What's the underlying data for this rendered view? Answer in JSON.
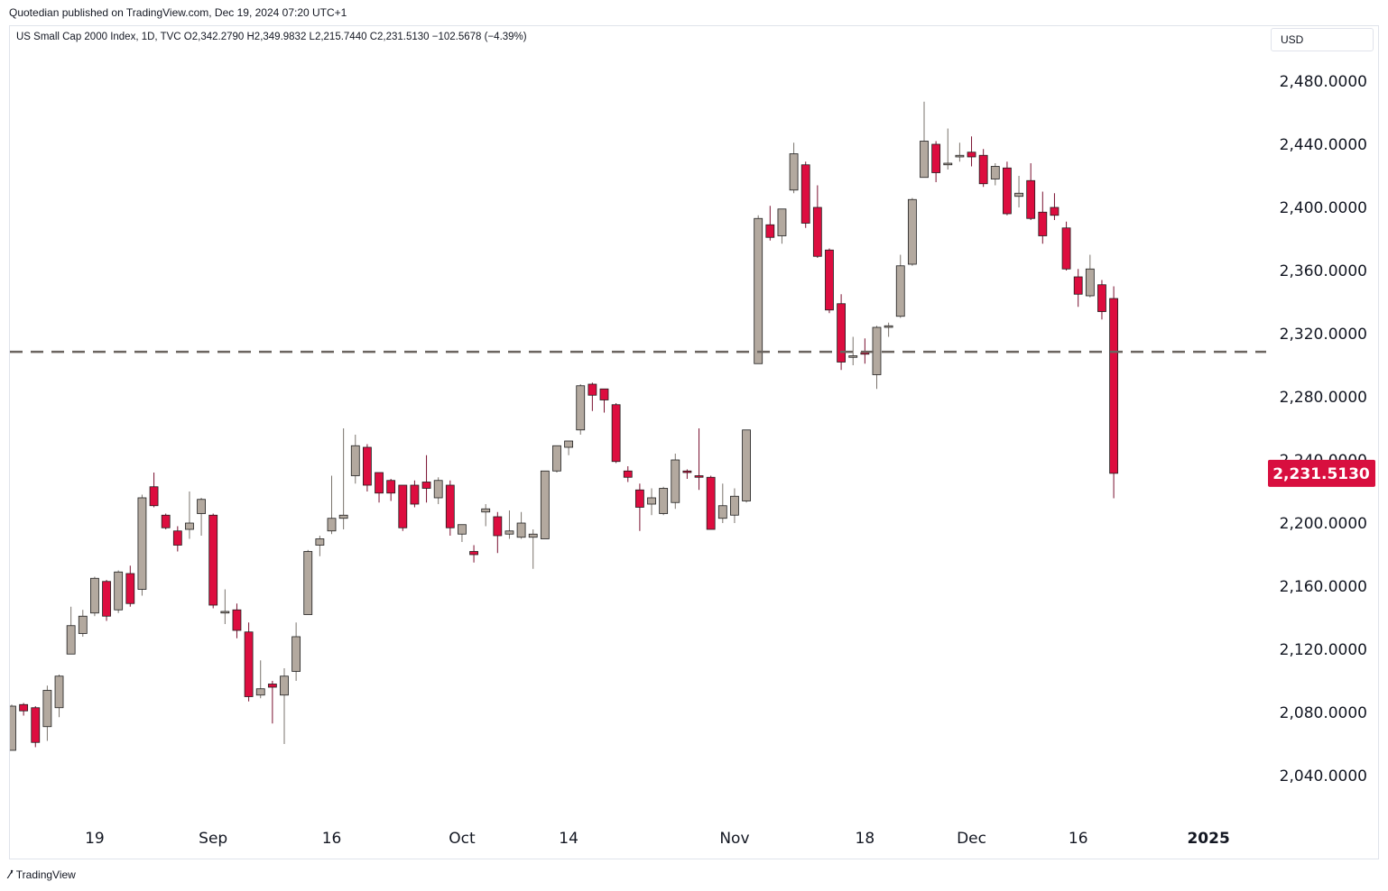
{
  "header": {
    "published": "Quotedian published on TradingView.com, Dec 19, 2024 07:20 UTC+1",
    "legend": "US Small Cap 2000 Index, 1D, TVC  O2,342.2790  H2,349.9832  L2,215.7440  C2,231.5130  −102.5678 (−4.39%)",
    "currency": "USD"
  },
  "footer": {
    "brand": "TradingView",
    "logo": "tradingview-logo-icon"
  },
  "colors": {
    "up": "#b3a99f",
    "down": "#dd0d3f",
    "wick_up": "#7a736c",
    "wick_down": "#7a1030",
    "dashed": "#6b6560",
    "price_tag": "#d80f3f"
  },
  "chart_data": {
    "type": "candlestick",
    "y_ticks": [
      "2,040.0000",
      "2,080.0000",
      "2,120.0000",
      "2,160.0000",
      "2,200.0000",
      "2,240.0000",
      "2,280.0000",
      "2,320.0000",
      "2,360.0000",
      "2,400.0000",
      "2,440.0000",
      "2,480.0000"
    ],
    "y_tick_values": [
      2040,
      2080,
      2120,
      2160,
      2200,
      2240,
      2280,
      2320,
      2360,
      2400,
      2440,
      2480
    ],
    "ylim": [
      2008,
      2522
    ],
    "x_labels": [
      {
        "label": "19",
        "index": 7
      },
      {
        "label": "Sep",
        "index": 17
      },
      {
        "label": "16",
        "index": 27
      },
      {
        "label": "Oct",
        "index": 38
      },
      {
        "label": "14",
        "index": 47
      },
      {
        "label": "Nov",
        "index": 61
      },
      {
        "label": "18",
        "index": 72
      },
      {
        "label": "Dec",
        "index": 81
      },
      {
        "label": "16",
        "index": 90
      },
      {
        "label": "2025",
        "index": 101
      }
    ],
    "last_price_label": "2,231.5130",
    "last_price": 2231.513,
    "horizontal_line": 2308.5,
    "candles": [
      {
        "o": 2056,
        "h": 2085,
        "l": 2056,
        "c": 2084
      },
      {
        "o": 2085,
        "h": 2086,
        "l": 2078,
        "c": 2081
      },
      {
        "o": 2083,
        "h": 2084,
        "l": 2058,
        "c": 2061
      },
      {
        "o": 2071,
        "h": 2097,
        "l": 2062,
        "c": 2094
      },
      {
        "o": 2083,
        "h": 2104,
        "l": 2077,
        "c": 2103
      },
      {
        "o": 2117,
        "h": 2147,
        "l": 2117,
        "c": 2135
      },
      {
        "o": 2130,
        "h": 2145,
        "l": 2128,
        "c": 2141
      },
      {
        "o": 2143,
        "h": 2166,
        "l": 2141,
        "c": 2165
      },
      {
        "o": 2163,
        "h": 2164,
        "l": 2138,
        "c": 2141
      },
      {
        "o": 2145,
        "h": 2170,
        "l": 2143,
        "c": 2169
      },
      {
        "o": 2168,
        "h": 2173,
        "l": 2147,
        "c": 2149
      },
      {
        "o": 2158,
        "h": 2218,
        "l": 2154,
        "c": 2216
      },
      {
        "o": 2223,
        "h": 2232,
        "l": 2210,
        "c": 2211
      },
      {
        "o": 2205,
        "h": 2206,
        "l": 2196,
        "c": 2197
      },
      {
        "o": 2195,
        "h": 2198,
        "l": 2182,
        "c": 2186
      },
      {
        "o": 2196,
        "h": 2220,
        "l": 2190,
        "c": 2200
      },
      {
        "o": 2206,
        "h": 2216,
        "l": 2192,
        "c": 2215
      },
      {
        "o": 2205,
        "h": 2206,
        "l": 2146,
        "c": 2148
      },
      {
        "o": 2143,
        "h": 2158,
        "l": 2136,
        "c": 2144
      },
      {
        "o": 2145,
        "h": 2149,
        "l": 2127,
        "c": 2132
      },
      {
        "o": 2131,
        "h": 2137,
        "l": 2087,
        "c": 2090
      },
      {
        "o": 2091,
        "h": 2113,
        "l": 2089,
        "c": 2095
      },
      {
        "o": 2098,
        "h": 2100,
        "l": 2073,
        "c": 2096
      },
      {
        "o": 2091,
        "h": 2108,
        "l": 2060,
        "c": 2103
      },
      {
        "o": 2106,
        "h": 2137,
        "l": 2100,
        "c": 2128
      },
      {
        "o": 2142,
        "h": 2183,
        "l": 2142,
        "c": 2182
      },
      {
        "o": 2186,
        "h": 2192,
        "l": 2179,
        "c": 2190
      },
      {
        "o": 2195,
        "h": 2230,
        "l": 2193,
        "c": 2203
      },
      {
        "o": 2203,
        "h": 2260,
        "l": 2196,
        "c": 2205
      },
      {
        "o": 2230,
        "h": 2256,
        "l": 2225,
        "c": 2249
      },
      {
        "o": 2248,
        "h": 2250,
        "l": 2220,
        "c": 2224
      },
      {
        "o": 2232,
        "h": 2232,
        "l": 2213,
        "c": 2219
      },
      {
        "o": 2227,
        "h": 2228,
        "l": 2214,
        "c": 2219
      },
      {
        "o": 2224,
        "h": 2224,
        "l": 2195,
        "c": 2197
      },
      {
        "o": 2224,
        "h": 2227,
        "l": 2210,
        "c": 2212
      },
      {
        "o": 2226,
        "h": 2243,
        "l": 2213,
        "c": 2222
      },
      {
        "o": 2216,
        "h": 2229,
        "l": 2212,
        "c": 2227
      },
      {
        "o": 2224,
        "h": 2227,
        "l": 2192,
        "c": 2197
      },
      {
        "o": 2193,
        "h": 2198,
        "l": 2188,
        "c": 2199
      },
      {
        "o": 2182,
        "h": 2186,
        "l": 2175,
        "c": 2180
      },
      {
        "o": 2207,
        "h": 2212,
        "l": 2198,
        "c": 2209
      },
      {
        "o": 2204,
        "h": 2207,
        "l": 2181,
        "c": 2192
      },
      {
        "o": 2193,
        "h": 2208,
        "l": 2190,
        "c": 2195
      },
      {
        "o": 2191,
        "h": 2207,
        "l": 2190,
        "c": 2200
      },
      {
        "o": 2191,
        "h": 2196,
        "l": 2171,
        "c": 2193
      },
      {
        "o": 2190,
        "h": 2233,
        "l": 2190,
        "c": 2233
      },
      {
        "o": 2233,
        "h": 2248,
        "l": 2232,
        "c": 2249
      },
      {
        "o": 2248,
        "h": 2250,
        "l": 2243,
        "c": 2252
      },
      {
        "o": 2259,
        "h": 2288,
        "l": 2256,
        "c": 2287
      },
      {
        "o": 2288,
        "h": 2289,
        "l": 2271,
        "c": 2281
      },
      {
        "o": 2285,
        "h": 2285,
        "l": 2270,
        "c": 2278
      },
      {
        "o": 2275,
        "h": 2276,
        "l": 2238,
        "c": 2239
      },
      {
        "o": 2233,
        "h": 2236,
        "l": 2226,
        "c": 2229
      },
      {
        "o": 2221,
        "h": 2225,
        "l": 2195,
        "c": 2210
      },
      {
        "o": 2212,
        "h": 2222,
        "l": 2205,
        "c": 2216
      },
      {
        "o": 2206,
        "h": 2223,
        "l": 2205,
        "c": 2222
      },
      {
        "o": 2213,
        "h": 2244,
        "l": 2209,
        "c": 2240
      },
      {
        "o": 2233,
        "h": 2234,
        "l": 2228,
        "c": 2232
      },
      {
        "o": 2230,
        "h": 2260,
        "l": 2221,
        "c": 2229
      },
      {
        "o": 2229,
        "h": 2230,
        "l": 2196,
        "c": 2196
      },
      {
        "o": 2203,
        "h": 2225,
        "l": 2200,
        "c": 2211
      },
      {
        "o": 2205,
        "h": 2222,
        "l": 2200,
        "c": 2217
      },
      {
        "o": 2214,
        "h": 2259,
        "l": 2213,
        "c": 2259
      },
      {
        "o": 2301,
        "h": 2395,
        "l": 2301,
        "c": 2393
      },
      {
        "o": 2389,
        "h": 2401,
        "l": 2379,
        "c": 2381
      },
      {
        "o": 2382,
        "h": 2397,
        "l": 2377,
        "c": 2399
      },
      {
        "o": 2411,
        "h": 2441,
        "l": 2409,
        "c": 2434
      },
      {
        "o": 2427,
        "h": 2429,
        "l": 2387,
        "c": 2390
      },
      {
        "o": 2400,
        "h": 2414,
        "l": 2368,
        "c": 2369
      },
      {
        "o": 2373,
        "h": 2374,
        "l": 2333,
        "c": 2335
      },
      {
        "o": 2339,
        "h": 2345,
        "l": 2297,
        "c": 2302
      },
      {
        "o": 2305,
        "h": 2318,
        "l": 2300,
        "c": 2306
      },
      {
        "o": 2308,
        "h": 2317,
        "l": 2301,
        "c": 2307
      },
      {
        "o": 2294,
        "h": 2325,
        "l": 2285,
        "c": 2324
      },
      {
        "o": 2324,
        "h": 2327,
        "l": 2318,
        "c": 2325
      },
      {
        "o": 2331,
        "h": 2370,
        "l": 2330,
        "c": 2363
      },
      {
        "o": 2364,
        "h": 2406,
        "l": 2363,
        "c": 2405
      },
      {
        "o": 2419,
        "h": 2467,
        "l": 2419,
        "c": 2442
      },
      {
        "o": 2440,
        "h": 2442,
        "l": 2416,
        "c": 2422
      },
      {
        "o": 2427,
        "h": 2450,
        "l": 2424,
        "c": 2428
      },
      {
        "o": 2432,
        "h": 2441,
        "l": 2429,
        "c": 2433
      },
      {
        "o": 2435,
        "h": 2445,
        "l": 2426,
        "c": 2432
      },
      {
        "o": 2433,
        "h": 2437,
        "l": 2413,
        "c": 2415
      },
      {
        "o": 2418,
        "h": 2428,
        "l": 2414,
        "c": 2426
      },
      {
        "o": 2425,
        "h": 2429,
        "l": 2395,
        "c": 2396
      },
      {
        "o": 2407,
        "h": 2420,
        "l": 2400,
        "c": 2409
      },
      {
        "o": 2417,
        "h": 2428,
        "l": 2392,
        "c": 2393
      },
      {
        "o": 2397,
        "h": 2410,
        "l": 2377,
        "c": 2382
      },
      {
        "o": 2400,
        "h": 2409,
        "l": 2392,
        "c": 2395
      },
      {
        "o": 2387,
        "h": 2391,
        "l": 2360,
        "c": 2361
      },
      {
        "o": 2356,
        "h": 2361,
        "l": 2337,
        "c": 2345
      },
      {
        "o": 2344,
        "h": 2370,
        "l": 2343,
        "c": 2361
      },
      {
        "o": 2351,
        "h": 2354,
        "l": 2329,
        "c": 2334
      },
      {
        "o": 2342.279,
        "h": 2349.9832,
        "l": 2215.744,
        "c": 2231.513
      }
    ]
  }
}
